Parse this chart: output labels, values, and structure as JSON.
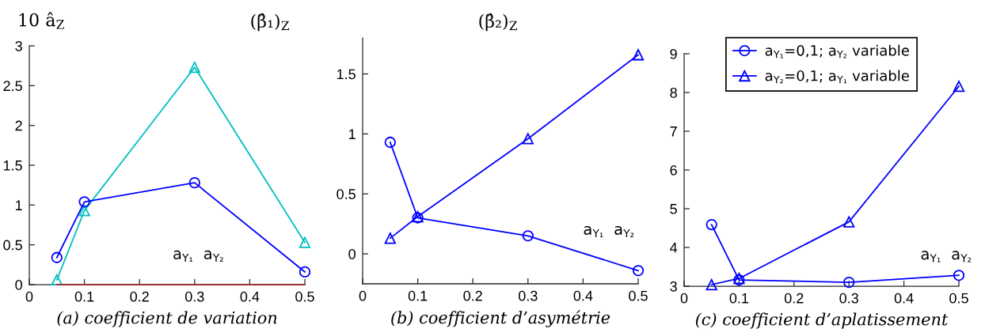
{
  "chart_data": [
    {
      "type": "line",
      "ylabel": "10 â$_{Z}$",
      "xlabel": "(a) coefficient de variation",
      "x": [
        0.05,
        0.1,
        0.3,
        0.5
      ],
      "xlim": [
        0,
        0.5
      ],
      "xticks": [
        0,
        0.1,
        0.2,
        0.3,
        0.4,
        0.5
      ],
      "ylim": [
        0,
        3
      ],
      "yticks": [
        0,
        0.5,
        1,
        1.5,
        2,
        2.5,
        3
      ],
      "series": [
        {
          "color": "#00bfbf",
          "marker": "triangle",
          "values": [
            0.06,
            0.93,
            2.73,
            0.53
          ]
        },
        {
          "color": "#0000ff",
          "marker": "circle",
          "values": [
            0.34,
            1.04,
            1.28,
            0.16
          ]
        },
        {
          "color": "#993333",
          "marker": "none",
          "values": [
            0,
            0,
            0,
            0
          ]
        }
      ],
      "annotations": [
        "a$_{Y₁}$  a$_{Y₂}$"
      ]
    },
    {
      "type": "line",
      "ylabel": "(β̂₁)$_{Z}$",
      "xlabel": "(b) coefficient d’asymétrie",
      "x": [
        0.05,
        0.1,
        0.3,
        0.5
      ],
      "xlim": [
        0,
        0.5
      ],
      "xticks": [
        0,
        0.1,
        0.2,
        0.3,
        0.4,
        0.5
      ],
      "ylim": [
        -0.25,
        1.8
      ],
      "yticks": [
        0,
        0.5,
        1,
        1.5
      ],
      "series": [
        {
          "color": "#0000ff",
          "marker": "circle",
          "values": [
            0.93,
            0.3,
            0.15,
            -0.14
          ]
        },
        {
          "color": "#0000ff",
          "marker": "triangle",
          "values": [
            0.13,
            0.31,
            0.96,
            1.66
          ]
        }
      ],
      "annotations": [
        "a$_{Y₁}$  a$_{Y₂}$"
      ]
    },
    {
      "type": "line",
      "ylabel": "(β̂₂)$_{Z}$",
      "xlabel": "(c) coefficient d’aplatissement",
      "x": [
        0.05,
        0.1,
        0.3,
        0.5
      ],
      "xlim": [
        0,
        0.5
      ],
      "xticks": [
        0,
        0.1,
        0.2,
        0.3,
        0.4,
        0.5
      ],
      "ylim": [
        3,
        9
      ],
      "yticks": [
        3,
        4,
        5,
        6,
        7,
        8,
        9
      ],
      "legend": "top",
      "series": [
        {
          "name": "a$_{Y₁}$=0,1; a$_{Y₂}$ variable",
          "color": "#0000ff",
          "marker": "circle",
          "values": [
            4.59,
            3.16,
            3.1,
            3.28
          ]
        },
        {
          "name": "a$_{Y₂}$=0,1; a$_{Y₁}$ variable",
          "color": "#0000ff",
          "marker": "triangle",
          "values": [
            3.04,
            3.2,
            4.66,
            8.16
          ]
        }
      ],
      "annotations": [
        "a$_{Y₁}$  a$_{Y₂}$"
      ]
    }
  ]
}
